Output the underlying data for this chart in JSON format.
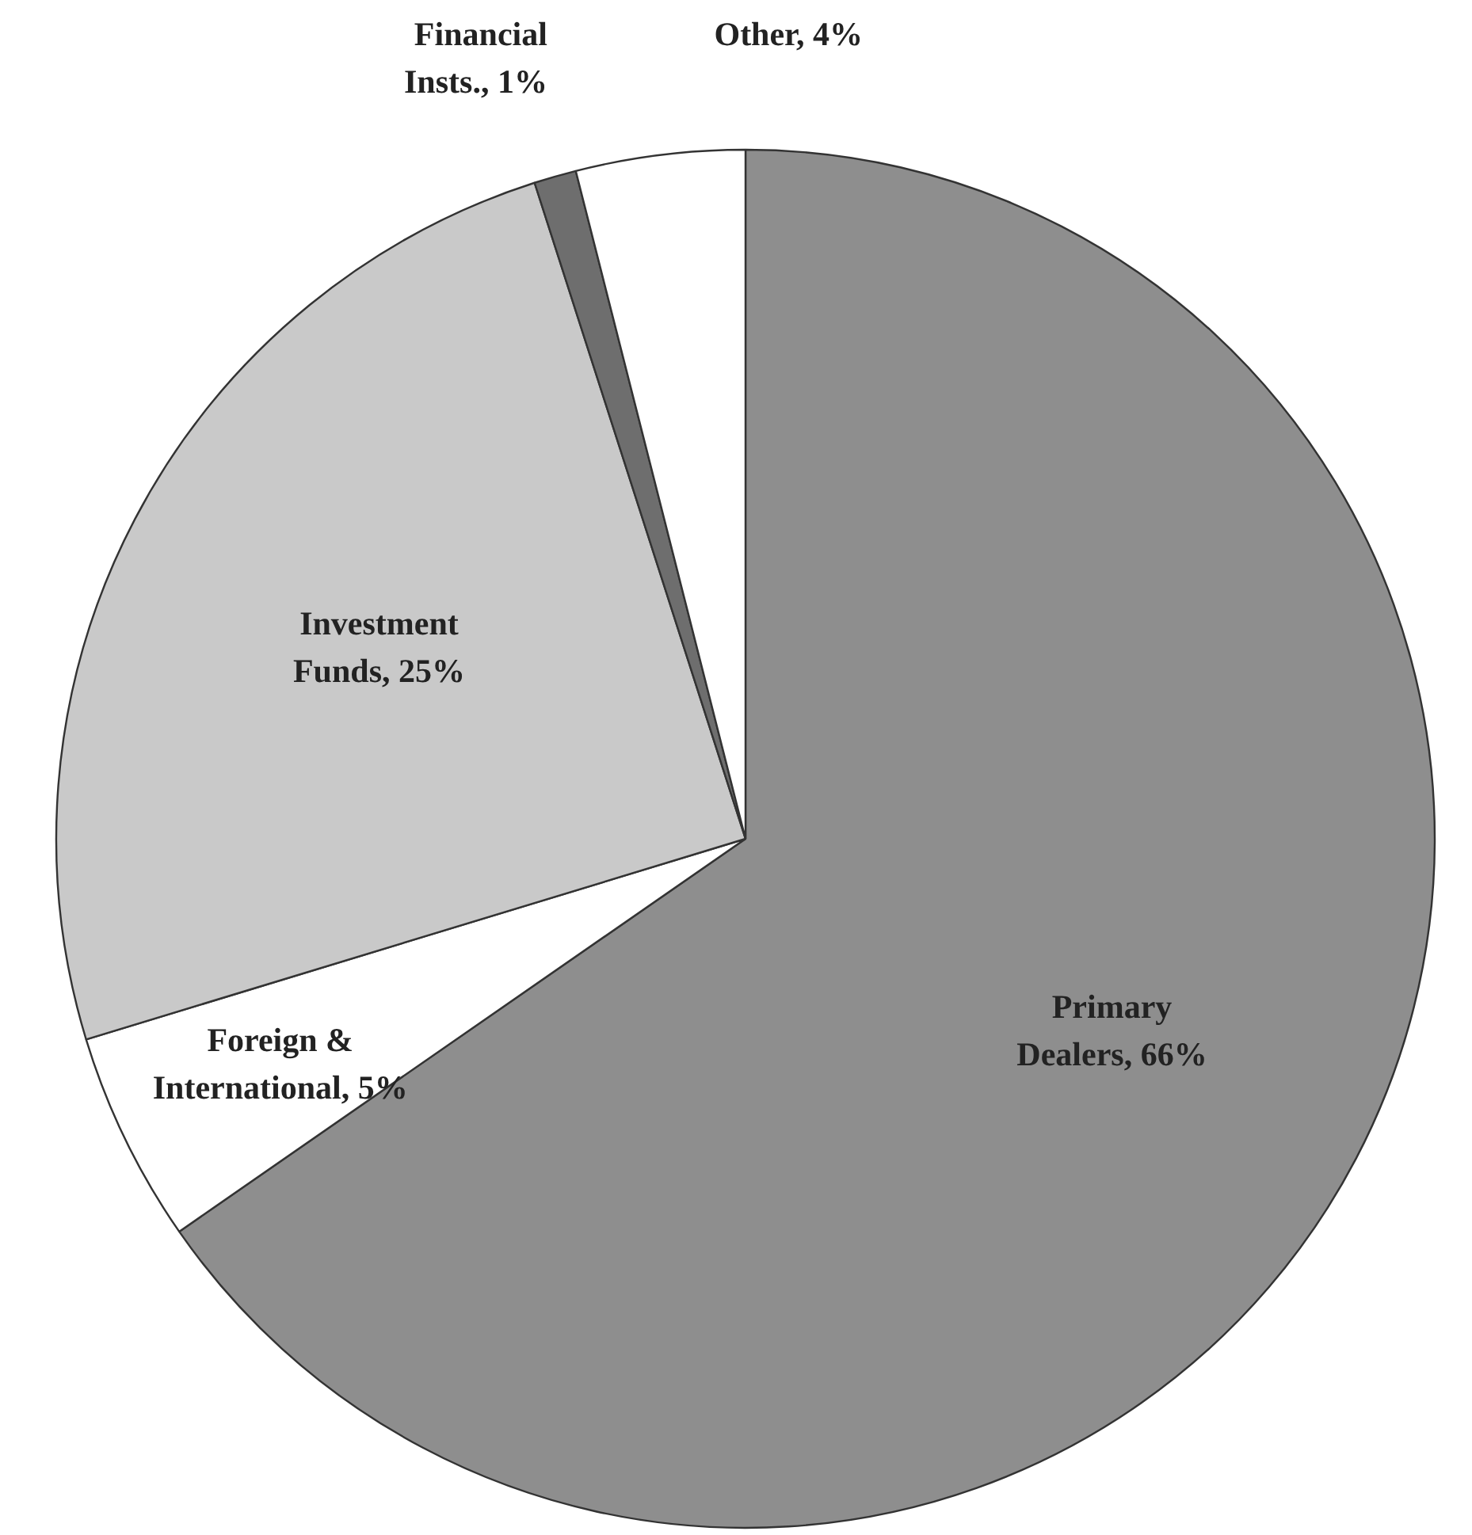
{
  "chart_data": {
    "type": "pie",
    "categories": [
      "Primary Dealers",
      "Foreign & International",
      "Investment Funds",
      "Financial Insts.",
      "Other"
    ],
    "values": [
      66,
      5,
      25,
      1,
      4
    ],
    "colors": [
      "#8e8e8e",
      "#ffffff",
      "#c9c9c9",
      "#6e6e6e",
      "#ffffff"
    ],
    "value_labels": [
      "66%",
      "5%",
      "25%",
      "1%",
      "4%"
    ],
    "legend": false
  }
}
